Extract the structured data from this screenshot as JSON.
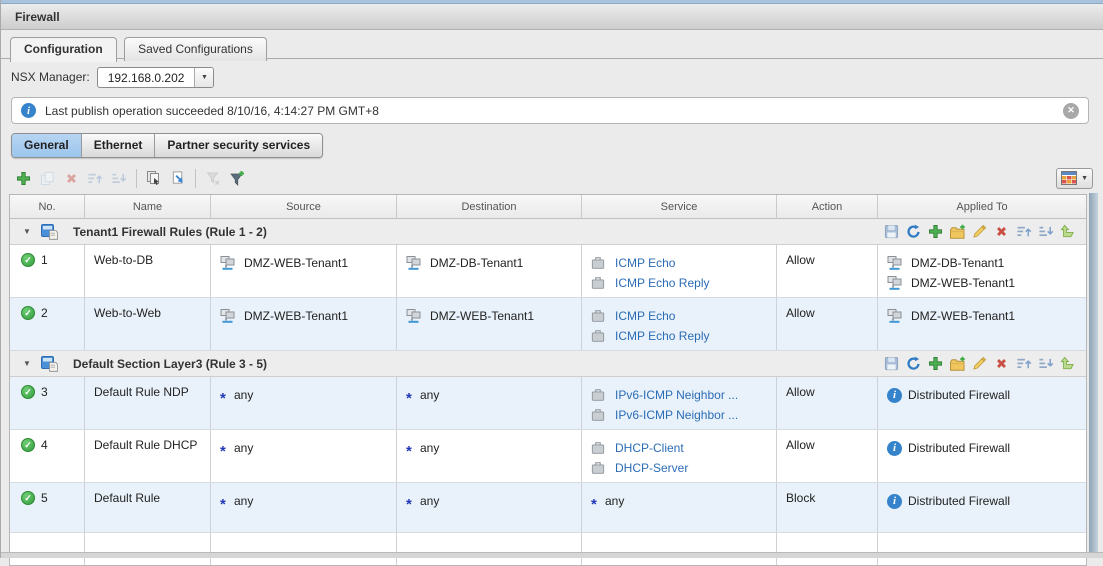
{
  "window": {
    "title": "Firewall"
  },
  "tabs": {
    "items": [
      {
        "label": "Configuration",
        "active": true
      },
      {
        "label": "Saved Configurations",
        "active": false
      }
    ]
  },
  "nsx_manager": {
    "label": "NSX Manager:",
    "value": "192.168.0.202"
  },
  "banner": {
    "message": "Last publish operation succeeded 8/10/16, 4:14:27 PM GMT+8"
  },
  "subtabs": {
    "items": [
      {
        "label": "General",
        "active": true
      },
      {
        "label": "Ethernet",
        "active": false
      },
      {
        "label": "Partner security services",
        "active": false
      }
    ]
  },
  "grid_toolbar": {
    "left_icons": [
      {
        "name": "add-rule",
        "icon": "plus",
        "disabled": false
      },
      {
        "name": "copy-rule",
        "icon": "copy",
        "disabled": true
      },
      {
        "name": "delete-rule",
        "icon": "delete",
        "disabled": true
      },
      {
        "name": "move-rule-up",
        "icon": "move-up",
        "disabled": true
      },
      {
        "name": "move-rule-down",
        "icon": "move-down",
        "disabled": true
      },
      {
        "sep": true
      },
      {
        "name": "revert-changes",
        "icon": "revert",
        "disabled": false
      },
      {
        "name": "export-rules",
        "icon": "export",
        "disabled": false
      },
      {
        "sep": true
      },
      {
        "name": "clear-filter",
        "icon": "filter-clear",
        "disabled": true
      },
      {
        "name": "apply-filter",
        "icon": "filter-add",
        "disabled": false
      }
    ]
  },
  "table": {
    "columns": [
      {
        "label": "No."
      },
      {
        "label": "Name"
      },
      {
        "label": "Source"
      },
      {
        "label": "Destination"
      },
      {
        "label": "Service"
      },
      {
        "label": "Action"
      },
      {
        "label": "Applied To"
      }
    ],
    "section_toolbar_icons": [
      "save",
      "refresh",
      "add",
      "folder-add",
      "edit",
      "delete",
      "move-up",
      "move-down",
      "merge"
    ],
    "sections": [
      {
        "title": "Tenant1 Firewall Rules (Rule 1 - 2)",
        "rules": [
          {
            "no": "1",
            "enabled": true,
            "name": "Web-to-DB",
            "shaded": false,
            "source": [
              {
                "type": "security-group",
                "label": "DMZ-WEB-Tenant1"
              }
            ],
            "destination": [
              {
                "type": "security-group",
                "label": "DMZ-DB-Tenant1"
              }
            ],
            "service": [
              {
                "type": "service",
                "label": "ICMP Echo"
              },
              {
                "type": "service",
                "label": "ICMP Echo Reply"
              }
            ],
            "action": "Allow",
            "applied_to": [
              {
                "type": "security-group",
                "label": "DMZ-DB-Tenant1"
              },
              {
                "type": "security-group",
                "label": "DMZ-WEB-Tenant1"
              }
            ]
          },
          {
            "no": "2",
            "enabled": true,
            "name": "Web-to-Web",
            "shaded": true,
            "source": [
              {
                "type": "security-group",
                "label": "DMZ-WEB-Tenant1"
              }
            ],
            "destination": [
              {
                "type": "security-group",
                "label": "DMZ-WEB-Tenant1"
              }
            ],
            "service": [
              {
                "type": "service",
                "label": "ICMP Echo"
              },
              {
                "type": "service",
                "label": "ICMP Echo Reply"
              }
            ],
            "action": "Allow",
            "applied_to": [
              {
                "type": "security-group",
                "label": "DMZ-WEB-Tenant1"
              }
            ]
          }
        ]
      },
      {
        "title": "Default Section Layer3 (Rule 3 - 5)",
        "rules": [
          {
            "no": "3",
            "enabled": true,
            "name": "Default Rule NDP",
            "shaded": true,
            "source": [
              {
                "type": "any",
                "label": "any"
              }
            ],
            "destination": [
              {
                "type": "any",
                "label": "any"
              }
            ],
            "service": [
              {
                "type": "service",
                "label": "IPv6-ICMP Neighbor ..."
              },
              {
                "type": "service",
                "label": "IPv6-ICMP Neighbor ..."
              }
            ],
            "action": "Allow",
            "applied_to": [
              {
                "type": "distributed-firewall",
                "label": "Distributed Firewall"
              }
            ]
          },
          {
            "no": "4",
            "enabled": true,
            "name": "Default Rule DHCP",
            "shaded": false,
            "source": [
              {
                "type": "any",
                "label": "any"
              }
            ],
            "destination": [
              {
                "type": "any",
                "label": "any"
              }
            ],
            "service": [
              {
                "type": "service",
                "label": "DHCP-Client"
              },
              {
                "type": "service",
                "label": "DHCP-Server"
              }
            ],
            "action": "Allow",
            "applied_to": [
              {
                "type": "distributed-firewall",
                "label": "Distributed Firewall"
              }
            ]
          },
          {
            "no": "5",
            "enabled": true,
            "name": "Default Rule",
            "shaded": true,
            "source": [
              {
                "type": "any",
                "label": "any"
              }
            ],
            "destination": [
              {
                "type": "any",
                "label": "any"
              }
            ],
            "service": [
              {
                "type": "any",
                "label": "any"
              }
            ],
            "action": "Block",
            "applied_to": [
              {
                "type": "distributed-firewall",
                "label": "Distributed Firewall"
              }
            ]
          }
        ]
      }
    ]
  },
  "colors": {
    "link": "#2b6cb5",
    "row_shade": "#e9f2fa",
    "enabled_green": "#3fae49",
    "info_blue": "#3583cb",
    "subtab_active": "#a8cdf0"
  }
}
